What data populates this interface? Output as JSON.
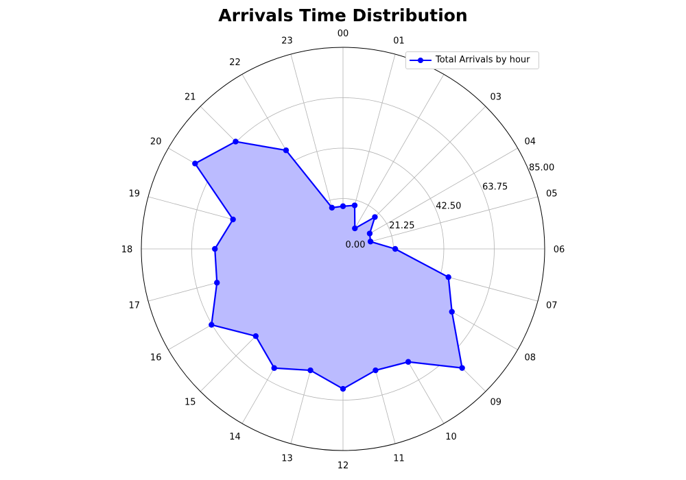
{
  "chart_data": {
    "type": "radar",
    "title": "Arrivals Time Distribution",
    "categories": [
      "00",
      "01",
      "02",
      "03",
      "04",
      "05",
      "06",
      "07",
      "08",
      "09",
      "10",
      "11",
      "12",
      "13",
      "14",
      "15",
      "16",
      "17",
      "18",
      "19",
      "20",
      "21",
      "22",
      "23"
    ],
    "series": [
      {
        "name": "Total Arrivals by hour",
        "values": [
          18,
          19,
          10,
          19,
          13,
          12,
          22,
          46,
          53,
          71,
          55,
          53,
          59,
          53,
          58,
          52,
          64,
          55,
          54,
          48,
          72,
          64,
          48,
          18
        ],
        "color": "#0000ff",
        "fill": "#bbbbff"
      }
    ],
    "rlim": [
      0,
      85
    ],
    "rticks": [
      "0.00",
      "21.25",
      "42.50",
      "63.75",
      "85.00"
    ],
    "grid": true,
    "legend_position": "top-right"
  }
}
